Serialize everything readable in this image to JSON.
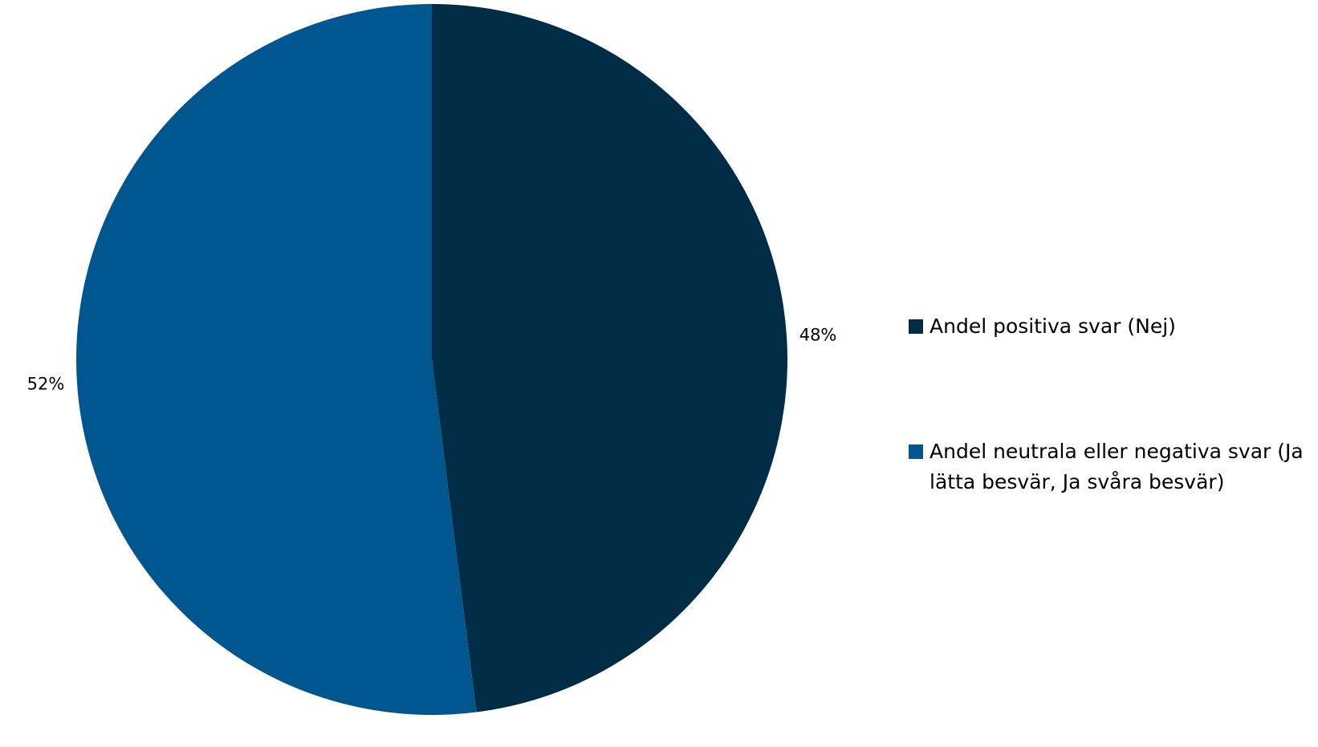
{
  "chart_data": {
    "type": "pie",
    "start_angle_deg": 0,
    "direction": "clockwise",
    "slices": [
      {
        "label": "Andel positiva svar (Nej)",
        "value": 48,
        "display": "48%",
        "color": "#002c46"
      },
      {
        "label": "Andel neutrala eller negativa svar (Ja lätta besvär, Ja svåra besvär)",
        "value": 52,
        "display": "52%",
        "color": "#00568f"
      }
    ],
    "legend_position": "right"
  }
}
